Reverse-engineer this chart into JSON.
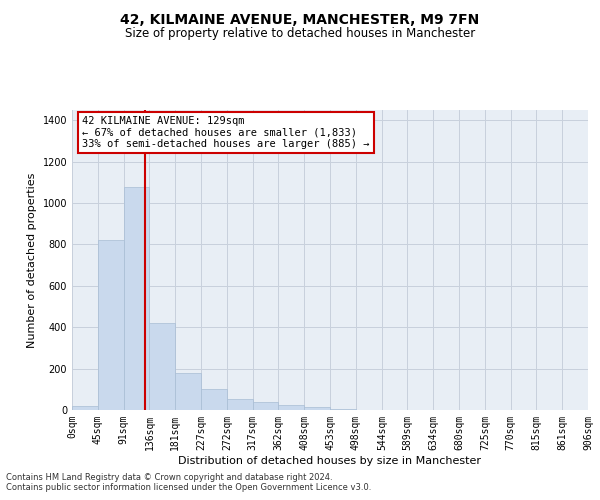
{
  "title": "42, KILMAINE AVENUE, MANCHESTER, M9 7FN",
  "subtitle": "Size of property relative to detached houses in Manchester",
  "xlabel": "Distribution of detached houses by size in Manchester",
  "ylabel": "Number of detached properties",
  "footnote1": "Contains HM Land Registry data © Crown copyright and database right 2024.",
  "footnote2": "Contains public sector information licensed under the Open Government Licence v3.0.",
  "bar_color": "#c9d9ed",
  "bar_edge_color": "#a8bdd4",
  "grid_color": "#c8d0dc",
  "background_color": "#e8eef5",
  "vline_x": 129,
  "vline_color": "#cc0000",
  "annotation_text": "42 KILMAINE AVENUE: 129sqm\n← 67% of detached houses are smaller (1,833)\n33% of semi-detached houses are larger (885) →",
  "annotation_box_color": "white",
  "annotation_box_edge": "#cc0000",
  "bin_edges": [
    0,
    45,
    91,
    136,
    181,
    227,
    272,
    317,
    362,
    408,
    453,
    498,
    544,
    589,
    634,
    680,
    725,
    770,
    815,
    861,
    906
  ],
  "bar_heights": [
    20,
    820,
    1080,
    420,
    180,
    100,
    55,
    40,
    25,
    15,
    5,
    2,
    1,
    0,
    0,
    0,
    0,
    0,
    0,
    0
  ],
  "ylim": [
    0,
    1450
  ],
  "yticks": [
    0,
    200,
    400,
    600,
    800,
    1000,
    1200,
    1400
  ],
  "title_fontsize": 10,
  "subtitle_fontsize": 8.5,
  "tick_fontsize": 7,
  "label_fontsize": 8,
  "annotation_fontsize": 7.5,
  "footnote_fontsize": 6
}
